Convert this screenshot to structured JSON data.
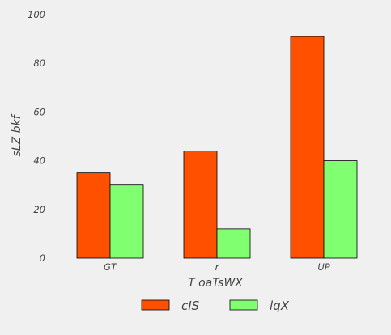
{
  "chart_data": {
    "type": "bar",
    "title": "",
    "xlabel": "T oaTsWX",
    "ylabel": "sLZ  bkf",
    "categories": [
      "GT",
      "r",
      "UP"
    ],
    "series": [
      {
        "name": "cIS",
        "values": [
          35,
          44,
          91
        ],
        "color": "#ff5000"
      },
      {
        "name": "lqX",
        "values": [
          30,
          12,
          40
        ],
        "color": "#80ff70"
      }
    ],
    "ylim": [
      0,
      100
    ],
    "yticks": [
      0,
      20,
      40,
      60,
      80,
      100
    ],
    "grid": false,
    "legend": "bottom-center"
  }
}
